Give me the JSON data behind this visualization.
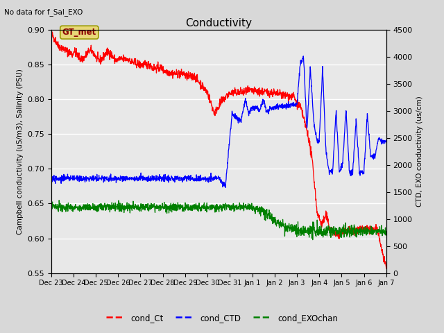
{
  "title": "Conductivity",
  "top_left_text": "No data for f_Sal_EXO",
  "ylabel_left": "Campbell conductivity (uS/m3), Salinity (PSU)",
  "ylabel_right": "CTD, EXO conductivity (us/cm)",
  "ylim_left": [
    0.55,
    0.9
  ],
  "ylim_right": [
    0,
    4500
  ],
  "yticks_left": [
    0.55,
    0.6,
    0.65,
    0.7,
    0.75,
    0.8,
    0.85,
    0.9
  ],
  "yticks_right": [
    0,
    500,
    1000,
    1500,
    2000,
    2500,
    3000,
    3500,
    4000,
    4500
  ],
  "bg_color": "#d8d8d8",
  "plot_bg_color": "#e8e8e8",
  "grid_color": "white",
  "legend_labels": [
    "cond_Ct",
    "cond_CTD",
    "cond_EXOchan"
  ],
  "legend_colors": [
    "red",
    "blue",
    "green"
  ],
  "annotation_text": "GT_met",
  "annotation_bg": "#e8d878",
  "line_colors": [
    "red",
    "blue",
    "green"
  ],
  "line_width": 0.9,
  "tick_labels": [
    "Dec 23",
    "Dec 24",
    "Dec 25",
    "Dec 26",
    "Dec 27",
    "Dec 28",
    "Dec 29",
    "Dec 30",
    "Dec 31",
    "Jan 1",
    "Jan 2",
    "Jan 3",
    "Jan 4",
    "Jan 5",
    "Jan 6",
    "Jan 7"
  ]
}
